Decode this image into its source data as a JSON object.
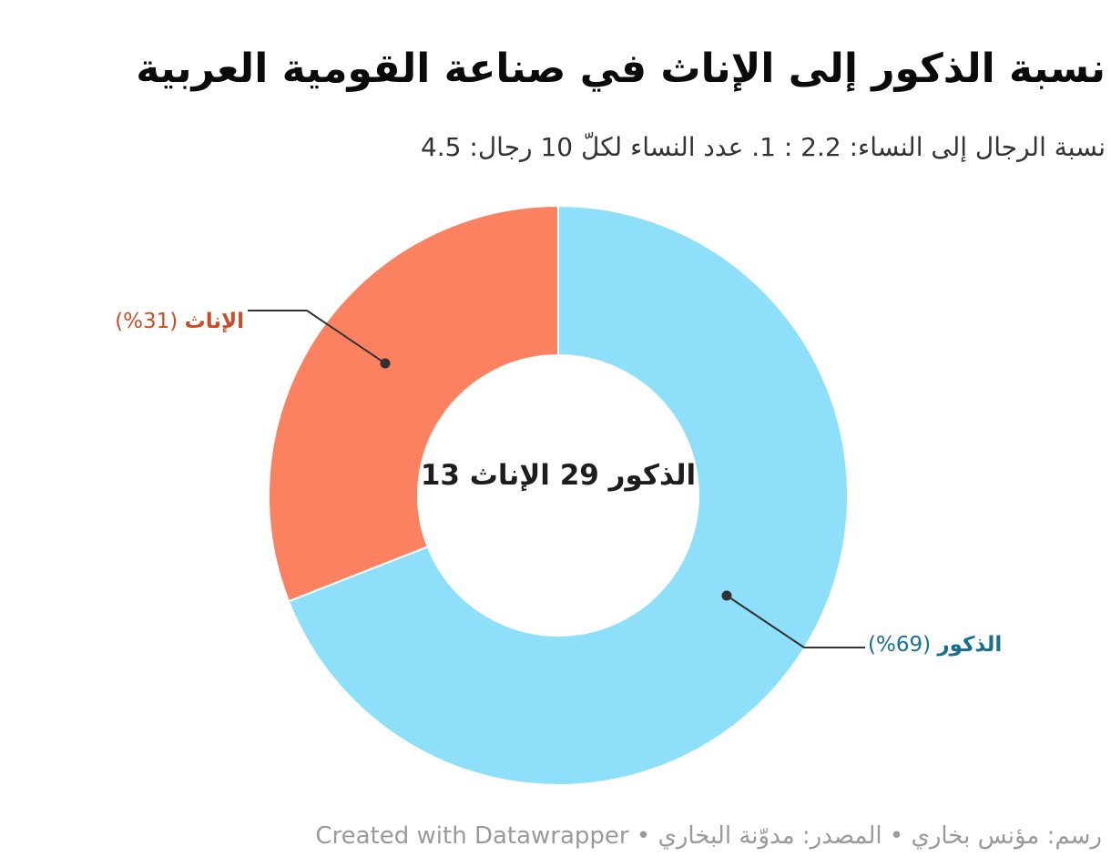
{
  "header": {
    "title": "نسبة الذكور إلى الإناث في صناعة القومية العربية",
    "subtitle": "نسبة الرجال إلى النساء: 2.2 : 1. عدد النساء لكلّ 10 رجال: 4.5"
  },
  "chart_data": {
    "type": "pie",
    "subtype": "donut",
    "direction": "rtl",
    "start_angle_deg": 0,
    "categories": [
      "الذكور",
      "الإناث"
    ],
    "values": [
      29,
      13
    ],
    "percentages": [
      69,
      31
    ],
    "slice_colors": [
      "#8edffa",
      "#fc8161"
    ],
    "label_colors": [
      "#17708f",
      "#c94e27"
    ],
    "slice_stroke_color": "#ffffff",
    "connector_color": "#333333",
    "center_label": "الذكور 29 الإناث 13",
    "labels": [
      {
        "name": "الذكور",
        "percent_display": "(%69)"
      },
      {
        "name": "الإناث",
        "percent_display": "(%31)"
      }
    ]
  },
  "footer": {
    "text": "رسم: مؤنس بخاري • المصدر: مدوّنة البخاري • Created with Datawrapper"
  }
}
